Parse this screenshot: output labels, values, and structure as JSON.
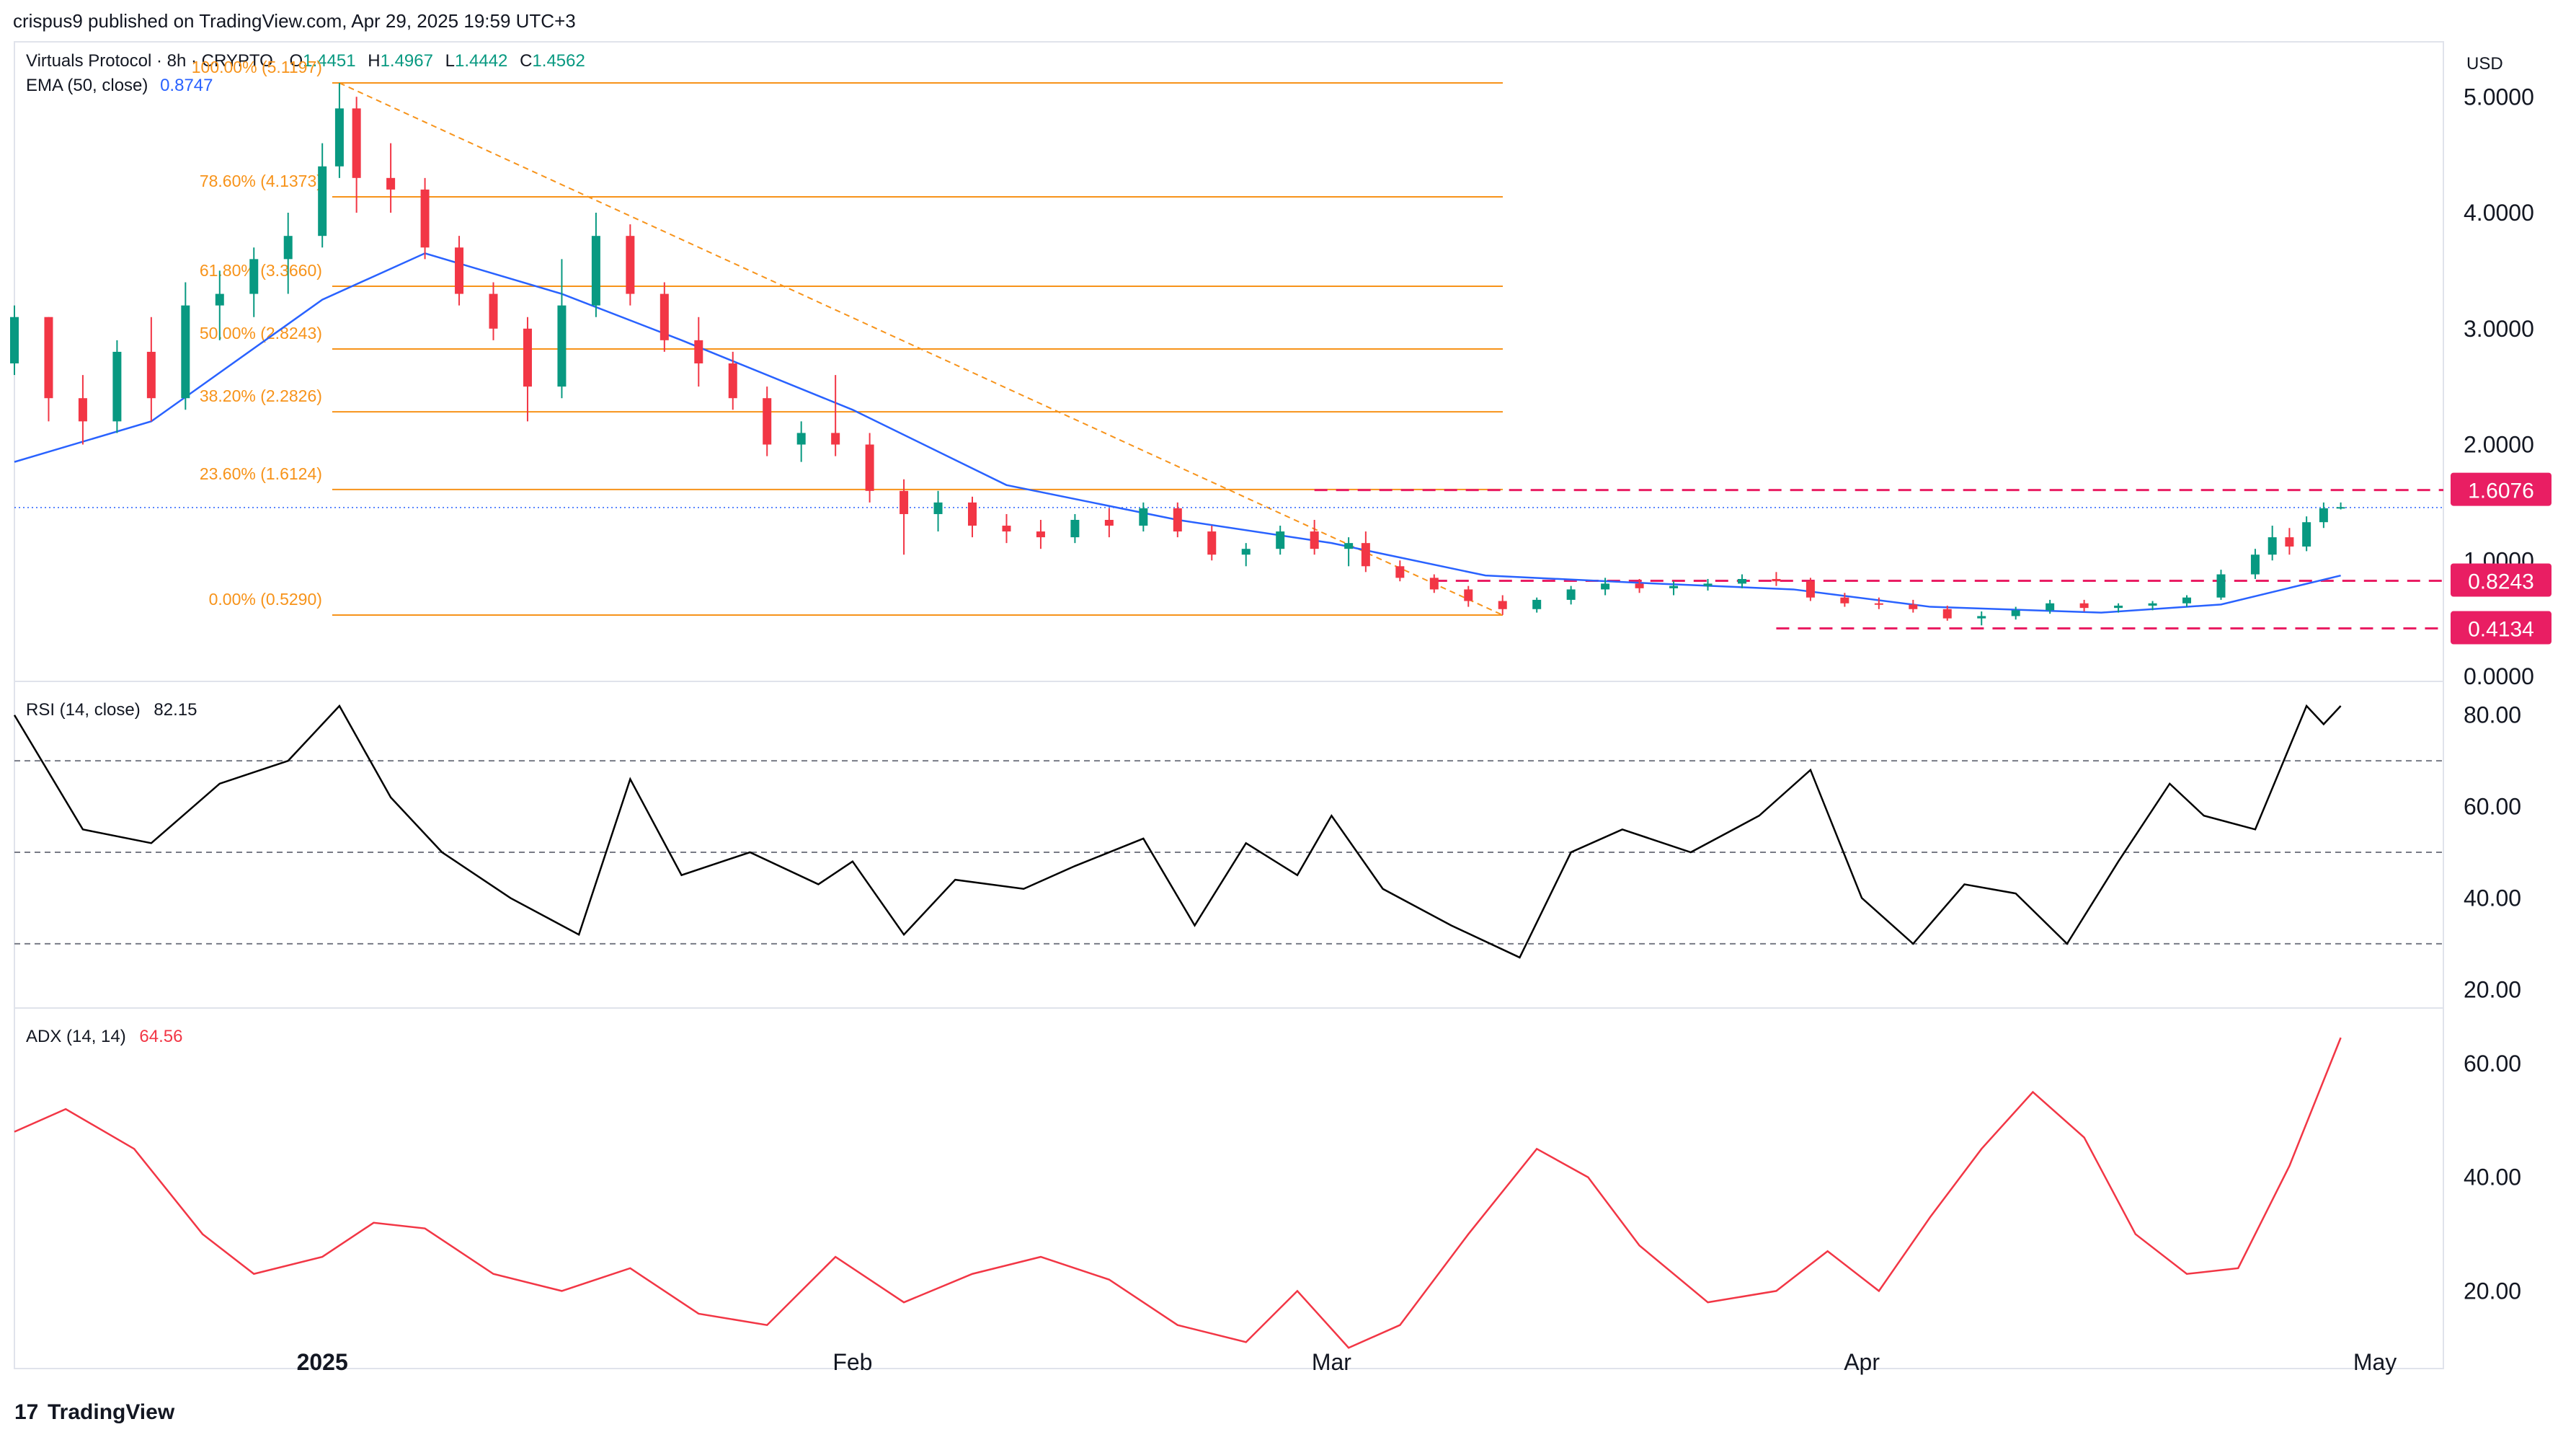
{
  "header": {
    "published": "crispus9 published on TradingView.com, Apr 29, 2025 19:59 UTC+3"
  },
  "footer": {
    "brand": "TradingView",
    "logo_glyph": "17"
  },
  "colors": {
    "up": "#089981",
    "down": "#f23645",
    "ema": "#2962ff",
    "fib": "#f7931a",
    "level": "#e91e63",
    "rsi": "#000000",
    "adx": "#f23645",
    "grid": "#e0e3eb",
    "text": "#131722"
  },
  "chart_data": [
    {
      "type": "candlestick",
      "title": "Virtuals Protocol · 8h · CRYPTO",
      "ohlc_label": {
        "o_prefix": "O",
        "o": "1.4451",
        "h_prefix": "H",
        "h": "1.4967",
        "l_prefix": "L",
        "l": "1.4442",
        "c_prefix": "C",
        "c": "1.4562"
      },
      "currency": "USD",
      "y_ticks": [
        "5.0000",
        "4.0000",
        "3.0000",
        "2.0000",
        "1.0000",
        "0.0000"
      ],
      "ylim": [
        0,
        5.4
      ],
      "x_ticks": [
        "2025",
        "Feb",
        "Mar",
        "Apr",
        "May"
      ],
      "x_tick_dates": [
        "2025-01-01",
        "2025-02-01",
        "2025-03-01",
        "2025-04-01",
        "2025-05-01"
      ],
      "xlim": [
        "2024-12-14",
        "2025-05-05"
      ],
      "last_price": 1.4562,
      "ema": {
        "label": "EMA (50, close)",
        "value": "0.8747",
        "points": [
          [
            "2024-12-14",
            1.85
          ],
          [
            "2024-12-22",
            2.2
          ],
          [
            "2025-01-01",
            3.25
          ],
          [
            "2025-01-07",
            3.65
          ],
          [
            "2025-01-15",
            3.3
          ],
          [
            "2025-01-22",
            2.9
          ],
          [
            "2025-02-01",
            2.3
          ],
          [
            "2025-02-10",
            1.65
          ],
          [
            "2025-02-20",
            1.35
          ],
          [
            "2025-03-01",
            1.15
          ],
          [
            "2025-03-10",
            0.87
          ],
          [
            "2025-03-20",
            0.8
          ],
          [
            "2025-03-28",
            0.75
          ],
          [
            "2025-04-05",
            0.6
          ],
          [
            "2025-04-15",
            0.55
          ],
          [
            "2025-04-22",
            0.62
          ],
          [
            "2025-04-29",
            0.87
          ]
        ]
      },
      "candles": [
        [
          "2024-12-14",
          2.7,
          3.2,
          2.6,
          3.1
        ],
        [
          "2024-12-16",
          3.1,
          3.1,
          2.2,
          2.4
        ],
        [
          "2024-12-18",
          2.4,
          2.6,
          2.0,
          2.2
        ],
        [
          "2024-12-20",
          2.2,
          2.9,
          2.1,
          2.8
        ],
        [
          "2024-12-22",
          2.8,
          3.1,
          2.2,
          2.4
        ],
        [
          "2024-12-24",
          2.4,
          3.4,
          2.3,
          3.2
        ],
        [
          "2024-12-26",
          3.2,
          3.5,
          2.9,
          3.3
        ],
        [
          "2024-12-28",
          3.3,
          3.7,
          3.1,
          3.6
        ],
        [
          "2024-12-30",
          3.6,
          4.0,
          3.3,
          3.8
        ],
        [
          "2025-01-01",
          3.8,
          4.6,
          3.7,
          4.4
        ],
        [
          "2025-01-02",
          4.4,
          5.12,
          4.3,
          4.9
        ],
        [
          "2025-01-03",
          4.9,
          5.0,
          4.0,
          4.3
        ],
        [
          "2025-01-05",
          4.3,
          4.6,
          4.0,
          4.2
        ],
        [
          "2025-01-07",
          4.2,
          4.3,
          3.6,
          3.7
        ],
        [
          "2025-01-09",
          3.7,
          3.8,
          3.2,
          3.3
        ],
        [
          "2025-01-11",
          3.3,
          3.4,
          2.9,
          3.0
        ],
        [
          "2025-01-13",
          3.0,
          3.1,
          2.2,
          2.5
        ],
        [
          "2025-01-15",
          2.5,
          3.6,
          2.4,
          3.2
        ],
        [
          "2025-01-17",
          3.2,
          4.0,
          3.1,
          3.8
        ],
        [
          "2025-01-19",
          3.8,
          3.9,
          3.2,
          3.3
        ],
        [
          "2025-01-21",
          3.3,
          3.4,
          2.8,
          2.9
        ],
        [
          "2025-01-23",
          2.9,
          3.1,
          2.5,
          2.7
        ],
        [
          "2025-01-25",
          2.7,
          2.8,
          2.3,
          2.4
        ],
        [
          "2025-01-27",
          2.4,
          2.5,
          1.9,
          2.0
        ],
        [
          "2025-01-29",
          2.0,
          2.2,
          1.85,
          2.1
        ],
        [
          "2025-01-31",
          2.1,
          2.6,
          1.9,
          2.0
        ],
        [
          "2025-02-02",
          2.0,
          2.1,
          1.5,
          1.6
        ],
        [
          "2025-02-04",
          1.6,
          1.7,
          1.05,
          1.4
        ],
        [
          "2025-02-06",
          1.4,
          1.6,
          1.25,
          1.5
        ],
        [
          "2025-02-08",
          1.5,
          1.55,
          1.2,
          1.3
        ],
        [
          "2025-02-10",
          1.3,
          1.4,
          1.15,
          1.25
        ],
        [
          "2025-02-12",
          1.25,
          1.35,
          1.1,
          1.2
        ],
        [
          "2025-02-14",
          1.2,
          1.4,
          1.15,
          1.35
        ],
        [
          "2025-02-16",
          1.35,
          1.45,
          1.2,
          1.3
        ],
        [
          "2025-02-18",
          1.3,
          1.5,
          1.25,
          1.45
        ],
        [
          "2025-02-20",
          1.45,
          1.5,
          1.2,
          1.25
        ],
        [
          "2025-02-22",
          1.25,
          1.3,
          1.0,
          1.05
        ],
        [
          "2025-02-24",
          1.05,
          1.15,
          0.95,
          1.1
        ],
        [
          "2025-02-26",
          1.1,
          1.3,
          1.05,
          1.25
        ],
        [
          "2025-02-28",
          1.25,
          1.35,
          1.05,
          1.1
        ],
        [
          "2025-03-02",
          1.1,
          1.2,
          0.95,
          1.15
        ],
        [
          "2025-03-03",
          1.15,
          1.25,
          0.9,
          0.95
        ],
        [
          "2025-03-05",
          0.95,
          1.0,
          0.82,
          0.85
        ],
        [
          "2025-03-07",
          0.85,
          0.88,
          0.72,
          0.75
        ],
        [
          "2025-03-09",
          0.75,
          0.78,
          0.6,
          0.65
        ],
        [
          "2025-03-11",
          0.65,
          0.7,
          0.53,
          0.58
        ],
        [
          "2025-03-13",
          0.58,
          0.68,
          0.55,
          0.66
        ],
        [
          "2025-03-15",
          0.66,
          0.78,
          0.62,
          0.75
        ],
        [
          "2025-03-17",
          0.75,
          0.85,
          0.7,
          0.8
        ],
        [
          "2025-03-19",
          0.8,
          0.84,
          0.72,
          0.76
        ],
        [
          "2025-03-21",
          0.76,
          0.82,
          0.7,
          0.78
        ],
        [
          "2025-03-23",
          0.78,
          0.84,
          0.74,
          0.8
        ],
        [
          "2025-03-25",
          0.8,
          0.88,
          0.76,
          0.84
        ],
        [
          "2025-03-27",
          0.84,
          0.9,
          0.78,
          0.82
        ],
        [
          "2025-03-29",
          0.82,
          0.85,
          0.65,
          0.68
        ],
        [
          "2025-03-31",
          0.68,
          0.72,
          0.6,
          0.63
        ],
        [
          "2025-04-02",
          0.63,
          0.68,
          0.58,
          0.62
        ],
        [
          "2025-04-04",
          0.62,
          0.66,
          0.55,
          0.58
        ],
        [
          "2025-04-06",
          0.58,
          0.61,
          0.48,
          0.5
        ],
        [
          "2025-04-08",
          0.5,
          0.56,
          0.44,
          0.52
        ],
        [
          "2025-04-10",
          0.52,
          0.6,
          0.49,
          0.57
        ],
        [
          "2025-04-12",
          0.57,
          0.66,
          0.54,
          0.63
        ],
        [
          "2025-04-14",
          0.63,
          0.66,
          0.56,
          0.59
        ],
        [
          "2025-04-16",
          0.59,
          0.63,
          0.55,
          0.61
        ],
        [
          "2025-04-18",
          0.61,
          0.65,
          0.57,
          0.63
        ],
        [
          "2025-04-20",
          0.63,
          0.7,
          0.6,
          0.68
        ],
        [
          "2025-04-22",
          0.68,
          0.92,
          0.66,
          0.88
        ],
        [
          "2025-04-24",
          0.88,
          1.1,
          0.84,
          1.05
        ],
        [
          "2025-04-25",
          1.05,
          1.3,
          1.0,
          1.2
        ],
        [
          "2025-04-26",
          1.2,
          1.28,
          1.05,
          1.12
        ],
        [
          "2025-04-27",
          1.12,
          1.38,
          1.08,
          1.33
        ],
        [
          "2025-04-28",
          1.33,
          1.5,
          1.28,
          1.45
        ],
        [
          "2025-04-29",
          1.45,
          1.5,
          1.44,
          1.46
        ]
      ],
      "fib_levels": [
        {
          "label": "100.00% (5.1197)",
          "price": 5.1197
        },
        {
          "label": "78.60% (4.1373)",
          "price": 4.1373
        },
        {
          "label": "61.80% (3.3660)",
          "price": 3.366
        },
        {
          "label": "50.00% (2.8243)",
          "price": 2.8243
        },
        {
          "label": "38.20% (2.2826)",
          "price": 2.2826
        },
        {
          "label": "23.60% (1.6124)",
          "price": 1.6124
        },
        {
          "label": "0.00% (0.5290)",
          "price": 0.529
        }
      ],
      "fib_range": [
        "2025-01-02",
        "2025-03-11"
      ],
      "levels": [
        {
          "label": "1.6076",
          "price": 1.6076,
          "from": "2025-02-28"
        },
        {
          "label": "0.8243",
          "price": 0.8243,
          "from": "2025-03-07"
        },
        {
          "label": "0.4134",
          "price": 0.4134,
          "from": "2025-03-27"
        }
      ]
    },
    {
      "type": "line",
      "title": "RSI (14, close)",
      "value": "82.15",
      "y_ticks": [
        "80.00",
        "60.00",
        "40.00",
        "20.00"
      ],
      "ylim": [
        18,
        85
      ],
      "bands": [
        70,
        50,
        30
      ],
      "series": [
        {
          "values": [
            [
              "2024-12-14",
              80
            ],
            [
              "2024-12-18",
              55
            ],
            [
              "2024-12-22",
              52
            ],
            [
              "2024-12-26",
              65
            ],
            [
              "2024-12-30",
              70
            ],
            [
              "2025-01-02",
              82
            ],
            [
              "2025-01-05",
              62
            ],
            [
              "2025-01-08",
              50
            ],
            [
              "2025-01-12",
              40
            ],
            [
              "2025-01-16",
              32
            ],
            [
              "2025-01-19",
              66
            ],
            [
              "2025-01-22",
              45
            ],
            [
              "2025-01-26",
              50
            ],
            [
              "2025-01-30",
              43
            ],
            [
              "2025-02-01",
              48
            ],
            [
              "2025-02-04",
              32
            ],
            [
              "2025-02-07",
              44
            ],
            [
              "2025-02-11",
              42
            ],
            [
              "2025-02-14",
              47
            ],
            [
              "2025-02-18",
              53
            ],
            [
              "2025-02-21",
              34
            ],
            [
              "2025-02-24",
              52
            ],
            [
              "2025-02-27",
              45
            ],
            [
              "2025-03-01",
              58
            ],
            [
              "2025-03-04",
              42
            ],
            [
              "2025-03-08",
              34
            ],
            [
              "2025-03-12",
              27
            ],
            [
              "2025-03-15",
              50
            ],
            [
              "2025-03-18",
              55
            ],
            [
              "2025-03-22",
              50
            ],
            [
              "2025-03-26",
              58
            ],
            [
              "2025-03-29",
              68
            ],
            [
              "2025-04-01",
              40
            ],
            [
              "2025-04-04",
              30
            ],
            [
              "2025-04-07",
              43
            ],
            [
              "2025-04-10",
              41
            ],
            [
              "2025-04-13",
              30
            ],
            [
              "2025-04-16",
              48
            ],
            [
              "2025-04-19",
              65
            ],
            [
              "2025-04-21",
              58
            ],
            [
              "2025-04-24",
              55
            ],
            [
              "2025-04-27",
              82
            ],
            [
              "2025-04-28",
              78
            ],
            [
              "2025-04-29",
              82
            ]
          ]
        }
      ]
    },
    {
      "type": "line",
      "title": "ADX (14, 14)",
      "value": "64.56",
      "y_ticks": [
        "60.00",
        "40.00",
        "20.00"
      ],
      "ylim": [
        8,
        68
      ],
      "series": [
        {
          "values": [
            [
              "2024-12-14",
              48
            ],
            [
              "2024-12-17",
              52
            ],
            [
              "2024-12-21",
              45
            ],
            [
              "2024-12-25",
              30
            ],
            [
              "2024-12-28",
              23
            ],
            [
              "2025-01-01",
              26
            ],
            [
              "2025-01-04",
              32
            ],
            [
              "2025-01-07",
              31
            ],
            [
              "2025-01-11",
              23
            ],
            [
              "2025-01-15",
              20
            ],
            [
              "2025-01-19",
              24
            ],
            [
              "2025-01-23",
              16
            ],
            [
              "2025-01-27",
              14
            ],
            [
              "2025-01-31",
              26
            ],
            [
              "2025-02-04",
              18
            ],
            [
              "2025-02-08",
              23
            ],
            [
              "2025-02-12",
              26
            ],
            [
              "2025-02-16",
              22
            ],
            [
              "2025-02-20",
              14
            ],
            [
              "2025-02-24",
              11
            ],
            [
              "2025-02-27",
              20
            ],
            [
              "2025-03-02",
              10
            ],
            [
              "2025-03-05",
              14
            ],
            [
              "2025-03-09",
              30
            ],
            [
              "2025-03-13",
              45
            ],
            [
              "2025-03-16",
              40
            ],
            [
              "2025-03-19",
              28
            ],
            [
              "2025-03-23",
              18
            ],
            [
              "2025-03-27",
              20
            ],
            [
              "2025-03-30",
              27
            ],
            [
              "2025-04-02",
              20
            ],
            [
              "2025-04-05",
              33
            ],
            [
              "2025-04-08",
              45
            ],
            [
              "2025-04-11",
              55
            ],
            [
              "2025-04-14",
              47
            ],
            [
              "2025-04-17",
              30
            ],
            [
              "2025-04-20",
              23
            ],
            [
              "2025-04-23",
              24
            ],
            [
              "2025-04-26",
              42
            ],
            [
              "2025-04-29",
              64.56
            ]
          ]
        }
      ]
    }
  ]
}
